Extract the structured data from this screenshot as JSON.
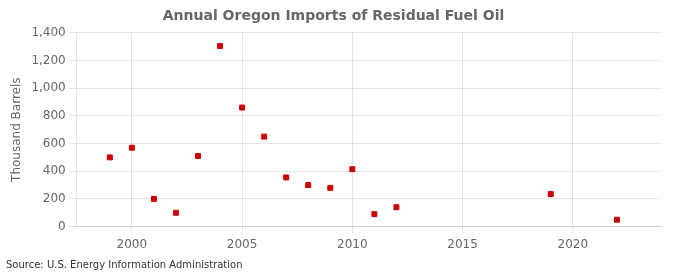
{
  "chart_data": {
    "type": "scatter",
    "title": "Annual Oregon Imports of Residual Fuel Oil",
    "ylabel": "Thousand Barrels",
    "annotations": [
      "Source: U.S. Energy Information Administration"
    ],
    "x": [
      1999,
      2000,
      2001,
      2002,
      2003,
      2004,
      2005,
      2006,
      2007,
      2008,
      2009,
      2010,
      2011,
      2012,
      2019,
      2022
    ],
    "values": [
      500,
      570,
      200,
      100,
      510,
      1305,
      860,
      650,
      355,
      300,
      280,
      415,
      90,
      140,
      235,
      50
    ],
    "color": "#cc0000",
    "marker": "square",
    "xlim": [
      1997.5,
      2024
    ],
    "xticks": [
      2000,
      2005,
      2010,
      2015,
      2020
    ],
    "ylim": [
      0,
      1400
    ],
    "yticks": [
      0,
      200,
      400,
      600,
      800,
      {
        "value": 1000,
        "label": "1,000"
      },
      {
        "value": 1200,
        "label": "1,200"
      },
      {
        "value": 1400,
        "label": "1,400"
      }
    ],
    "grid": true
  }
}
